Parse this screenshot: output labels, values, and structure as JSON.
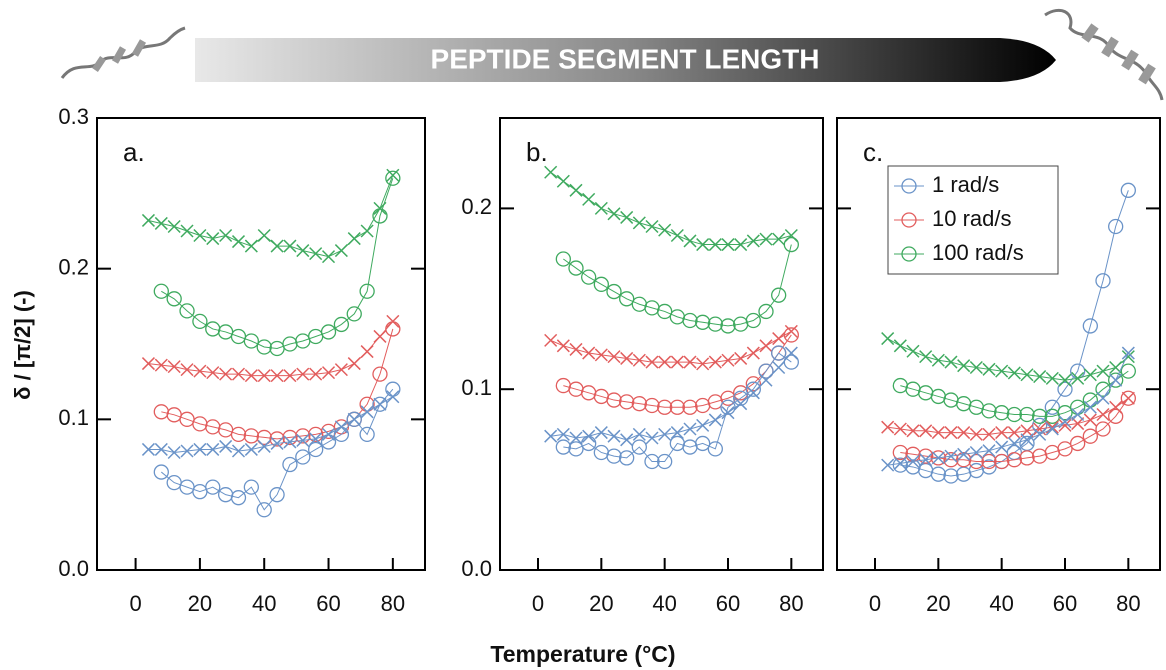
{
  "banner": "PEPTIDE SEGMENT LENGTH",
  "ylabel": "δ / [π/2] (-)",
  "xlabel": "Temperature (°C)",
  "chart_data": [
    {
      "type": "scatter",
      "label": "a.",
      "x": [
        4,
        8,
        12,
        16,
        20,
        24,
        28,
        32,
        36,
        40,
        44,
        48,
        52,
        56,
        60,
        64,
        68,
        72,
        76,
        80
      ],
      "xlim": [
        -12,
        90
      ],
      "xticks": [
        0,
        20,
        40,
        60,
        80
      ],
      "ylim": [
        0,
        0.3
      ],
      "yticks": [
        {
          "value": 0,
          "label": "0.0"
        },
        0.1,
        0.2,
        0.3
      ],
      "show_ytick_labels": true,
      "series": [
        {
          "color": "#3faa5f",
          "marker": "x",
          "values": [
            0.232,
            0.23,
            0.228,
            0.225,
            0.222,
            0.22,
            0.222,
            0.218,
            0.215,
            0.222,
            0.215,
            0.215,
            0.212,
            0.21,
            0.208,
            0.212,
            0.22,
            0.225,
            0.24,
            0.262
          ]
        },
        {
          "color": "#3faa5f",
          "marker": "circle",
          "values": [
            null,
            0.185,
            0.18,
            0.172,
            0.165,
            0.16,
            0.158,
            0.155,
            0.152,
            0.148,
            0.147,
            0.15,
            0.152,
            0.155,
            0.158,
            0.163,
            0.17,
            0.185,
            0.235,
            0.26
          ]
        },
        {
          "color": "#e25d5d",
          "marker": "x",
          "values": [
            0.137,
            0.136,
            0.135,
            0.133,
            0.132,
            0.131,
            0.13,
            0.13,
            0.129,
            0.129,
            0.129,
            0.129,
            0.13,
            0.13,
            0.131,
            0.133,
            0.137,
            0.145,
            0.155,
            0.165
          ]
        },
        {
          "color": "#e25d5d",
          "marker": "circle",
          "values": [
            null,
            0.105,
            0.103,
            0.1,
            0.097,
            0.095,
            0.093,
            0.09,
            0.089,
            0.088,
            0.087,
            0.088,
            0.089,
            0.09,
            0.092,
            0.095,
            0.1,
            0.11,
            0.13,
            0.16
          ]
        },
        {
          "color": "#6a93c8",
          "marker": "circle",
          "values": [
            null,
            0.065,
            0.058,
            0.055,
            0.052,
            0.055,
            0.05,
            0.048,
            0.055,
            0.04,
            0.05,
            0.07,
            0.075,
            0.08,
            0.085,
            0.09,
            0.1,
            0.09,
            0.11,
            0.12
          ]
        },
        {
          "color": "#6a93c8",
          "marker": "x",
          "values": [
            0.08,
            0.08,
            0.078,
            0.079,
            0.08,
            0.08,
            0.082,
            0.079,
            0.08,
            0.082,
            0.084,
            0.085,
            0.086,
            0.087,
            0.09,
            0.095,
            0.1,
            0.105,
            0.11,
            0.115
          ]
        }
      ]
    },
    {
      "type": "scatter",
      "label": "b.",
      "x": [
        4,
        8,
        12,
        16,
        20,
        24,
        28,
        32,
        36,
        40,
        44,
        48,
        52,
        56,
        60,
        64,
        68,
        72,
        76,
        80
      ],
      "xlim": [
        -12,
        90
      ],
      "xticks": [
        0,
        20,
        40,
        60,
        80
      ],
      "ylim": [
        0,
        0.25
      ],
      "yticks": [
        {
          "value": 0,
          "label": "0.0"
        },
        0.1,
        0.2
      ],
      "show_ytick_labels": true,
      "series": [
        {
          "color": "#3faa5f",
          "marker": "x",
          "values": [
            0.22,
            0.215,
            0.21,
            0.205,
            0.2,
            0.197,
            0.195,
            0.192,
            0.19,
            0.188,
            0.185,
            0.182,
            0.18,
            0.18,
            0.18,
            0.18,
            0.182,
            0.183,
            0.183,
            0.185
          ]
        },
        {
          "color": "#3faa5f",
          "marker": "circle",
          "values": [
            null,
            0.172,
            0.167,
            0.162,
            0.158,
            0.154,
            0.15,
            0.147,
            0.145,
            0.143,
            0.14,
            0.138,
            0.137,
            0.136,
            0.135,
            0.136,
            0.138,
            0.143,
            0.152,
            0.18
          ]
        },
        {
          "color": "#e25d5d",
          "marker": "x",
          "values": [
            0.127,
            0.124,
            0.122,
            0.12,
            0.119,
            0.118,
            0.117,
            0.116,
            0.115,
            0.115,
            0.115,
            0.115,
            0.114,
            0.115,
            0.116,
            0.117,
            0.12,
            0.124,
            0.128,
            0.132
          ]
        },
        {
          "color": "#e25d5d",
          "marker": "circle",
          "values": [
            null,
            0.102,
            0.1,
            0.098,
            0.096,
            0.094,
            0.093,
            0.092,
            0.091,
            0.09,
            0.09,
            0.09,
            0.091,
            0.093,
            0.095,
            0.098,
            0.103,
            0.11,
            0.12,
            0.13
          ]
        },
        {
          "color": "#6a93c8",
          "marker": "circle",
          "values": [
            null,
            0.068,
            0.067,
            0.07,
            0.065,
            0.063,
            0.062,
            0.068,
            0.06,
            0.06,
            0.07,
            0.068,
            0.07,
            0.067,
            0.09,
            0.095,
            0.1,
            0.11,
            0.12,
            0.115
          ]
        },
        {
          "color": "#6a93c8",
          "marker": "x",
          "values": [
            0.074,
            0.075,
            0.073,
            0.074,
            0.076,
            0.074,
            0.072,
            0.075,
            0.073,
            0.075,
            0.076,
            0.078,
            0.08,
            0.083,
            0.087,
            0.092,
            0.098,
            0.105,
            0.112,
            0.12
          ]
        }
      ]
    },
    {
      "type": "scatter",
      "label": "c.",
      "legend": "upper left",
      "x": [
        4,
        8,
        12,
        16,
        20,
        24,
        28,
        32,
        36,
        40,
        44,
        48,
        52,
        56,
        60,
        64,
        68,
        72,
        76,
        80
      ],
      "xlim": [
        -12,
        90
      ],
      "xticks": [
        0,
        20,
        40,
        60,
        80
      ],
      "ylim": [
        0,
        0.25
      ],
      "yticks": [
        0.1,
        0.2
      ],
      "show_ytick_labels": false,
      "series": [
        {
          "name": "1 rad/s",
          "color": "#6a93c8",
          "marker": "circle",
          "values": [
            null,
            0.058,
            0.057,
            0.055,
            0.053,
            0.052,
            0.053,
            0.055,
            0.057,
            0.06,
            0.065,
            0.07,
            0.08,
            0.09,
            0.1,
            0.11,
            0.135,
            0.16,
            0.19,
            0.21
          ]
        },
        {
          "name": "10 rad/s",
          "color": "#e25d5d",
          "marker": "circle",
          "values": [
            null,
            0.065,
            0.064,
            0.063,
            0.062,
            0.061,
            0.061,
            0.06,
            0.06,
            0.06,
            0.061,
            0.062,
            0.063,
            0.065,
            0.067,
            0.07,
            0.074,
            0.078,
            0.085,
            0.095
          ]
        },
        {
          "name": "100 rad/s",
          "color": "#3faa5f",
          "marker": "circle",
          "values": [
            null,
            0.102,
            0.1,
            0.098,
            0.096,
            0.094,
            0.092,
            0.09,
            0.088,
            0.087,
            0.086,
            0.086,
            0.085,
            0.085,
            0.087,
            0.09,
            0.094,
            0.1,
            0.105,
            0.11
          ]
        },
        {
          "color": "#3faa5f",
          "marker": "x",
          "values": [
            0.128,
            0.124,
            0.121,
            0.118,
            0.116,
            0.115,
            0.113,
            0.112,
            0.111,
            0.11,
            0.109,
            0.108,
            0.107,
            0.106,
            0.105,
            0.106,
            0.108,
            0.11,
            0.112,
            0.118
          ]
        },
        {
          "color": "#e25d5d",
          "marker": "x",
          "values": [
            0.079,
            0.078,
            0.077,
            0.077,
            0.076,
            0.076,
            0.076,
            0.075,
            0.075,
            0.076,
            0.076,
            0.077,
            0.078,
            0.079,
            0.08,
            0.081,
            0.083,
            0.086,
            0.09,
            0.095
          ]
        },
        {
          "color": "#6a93c8",
          "marker": "x",
          "values": [
            0.058,
            0.059,
            0.06,
            0.061,
            0.062,
            0.063,
            0.064,
            0.065,
            0.066,
            0.068,
            0.07,
            0.072,
            0.075,
            0.078,
            0.082,
            0.086,
            0.09,
            0.095,
            0.105,
            0.12
          ]
        }
      ]
    }
  ]
}
